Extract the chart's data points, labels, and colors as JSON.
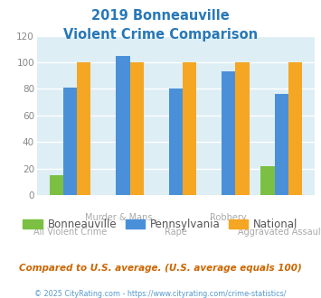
{
  "title_line1": "2019 Bonneauville",
  "title_line2": "Violent Crime Comparison",
  "title_color": "#2878b8",
  "categories": [
    "All Violent Crime",
    "Murder & Mans...",
    "Rape",
    "Robbery",
    "Aggravated Assault"
  ],
  "bonneauville": [
    15,
    0,
    0,
    0,
    22
  ],
  "pennsylvania": [
    81,
    105,
    80,
    93,
    76
  ],
  "national": [
    100,
    100,
    100,
    100,
    100
  ],
  "bar_colors": {
    "bonneauville": "#7bc043",
    "pennsylvania": "#4a90d9",
    "national": "#f5a623"
  },
  "ylim": [
    0,
    120
  ],
  "yticks": [
    0,
    20,
    40,
    60,
    80,
    100,
    120
  ],
  "plot_bg": "#ddeef5",
  "footer_text": "Compared to U.S. average. (U.S. average equals 100)",
  "copyright_text": "© 2025 CityRating.com - https://www.cityrating.com/crime-statistics/",
  "legend_labels": [
    "Bonneauville",
    "Pennsylvania",
    "National"
  ],
  "cat_labels_top": [
    {
      "text": "Murder & Mans...",
      "idx": 1
    },
    {
      "text": "Robbery",
      "idx": 3
    }
  ],
  "cat_labels_bottom": [
    {
      "text": "All Violent Crime",
      "idx": 0
    },
    {
      "text": "Rape",
      "idx": 2
    },
    {
      "text": "Aggravated Assault",
      "idx": 4
    }
  ],
  "footer_color": "#cc6600",
  "copyright_color": "#5599cc"
}
